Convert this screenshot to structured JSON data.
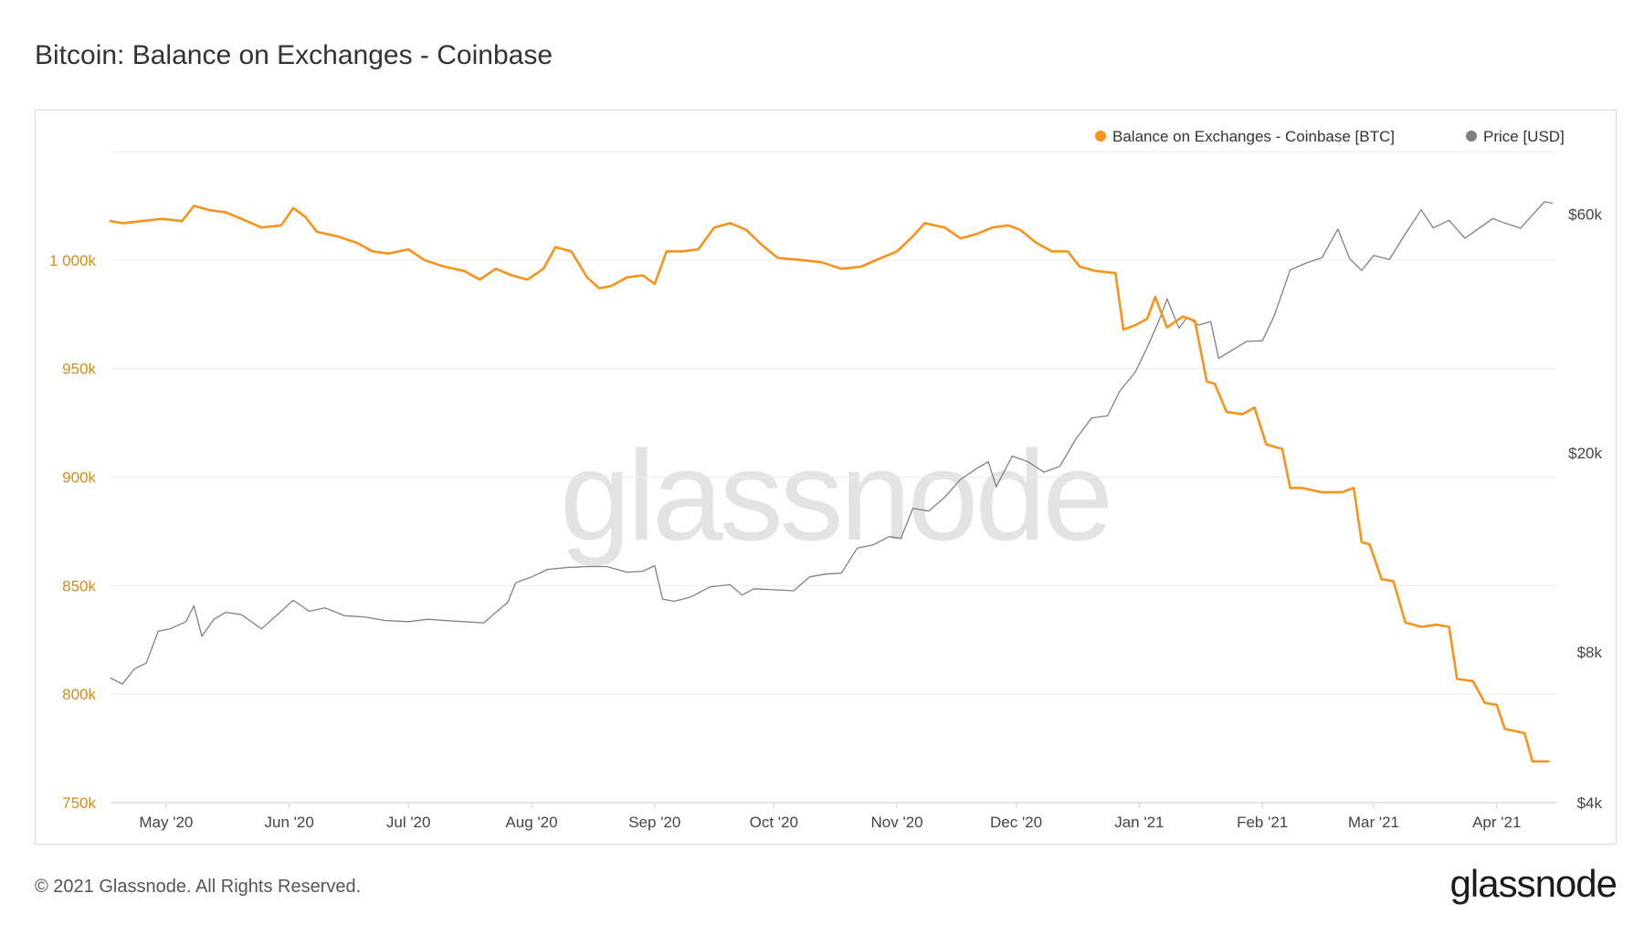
{
  "title": "Bitcoin: Balance on Exchanges - Coinbase",
  "footer": {
    "copyright": "© 2021 Glassnode. All Rights Reserved.",
    "logo": "glassnode"
  },
  "watermark": "glassnode",
  "colors": {
    "balance": "#f7931a",
    "price": "#808080",
    "grid": "#ececec",
    "left_axis_text": "#d98a1c",
    "right_axis_text": "#444444",
    "watermark": "#e3e3e3"
  },
  "chart_data": {
    "type": "line",
    "title": "Bitcoin: Balance on Exchanges - Coinbase",
    "x_range": [
      "2020-04-17",
      "2021-04-16"
    ],
    "x_ticks": [
      {
        "label": "May '20",
        "date": "2020-05-01"
      },
      {
        "label": "Jun '20",
        "date": "2020-06-01"
      },
      {
        "label": "Jul '20",
        "date": "2020-07-01"
      },
      {
        "label": "Aug '20",
        "date": "2020-08-01"
      },
      {
        "label": "Sep '20",
        "date": "2020-09-01"
      },
      {
        "label": "Oct '20",
        "date": "2020-10-01"
      },
      {
        "label": "Nov '20",
        "date": "2020-11-01"
      },
      {
        "label": "Dec '20",
        "date": "2020-12-01"
      },
      {
        "label": "Jan '21",
        "date": "2021-01-01"
      },
      {
        "label": "Feb '21",
        "date": "2021-02-01"
      },
      {
        "label": "Mar '21",
        "date": "2021-03-01"
      },
      {
        "label": "Apr '21",
        "date": "2021-04-01"
      }
    ],
    "y_left": {
      "range": [
        750000,
        1050000
      ],
      "ticks": [
        {
          "label": "750k",
          "value": 750000
        },
        {
          "label": "800k",
          "value": 800000
        },
        {
          "label": "850k",
          "value": 850000
        },
        {
          "label": "900k",
          "value": 900000
        },
        {
          "label": "950k",
          "value": 950000
        },
        {
          "label": "1 000k",
          "value": 1000000
        }
      ]
    },
    "y_right": {
      "scale": "log",
      "range": [
        4000,
        80000
      ],
      "ticks": [
        {
          "label": "$4k",
          "value": 4000
        },
        {
          "label": "$8k",
          "value": 8000
        },
        {
          "label": "$20k",
          "value": 20000
        },
        {
          "label": "$60k",
          "value": 60000
        }
      ]
    },
    "grid": true,
    "legend_position": "top-right",
    "series": [
      {
        "name": "Balance on Exchanges - Coinbase [BTC]",
        "axis": "left",
        "color": "#f7931a",
        "points": [
          [
            "2020-04-17",
            1018000
          ],
          [
            "2020-04-20",
            1017000
          ],
          [
            "2020-04-25",
            1018000
          ],
          [
            "2020-04-30",
            1019000
          ],
          [
            "2020-05-05",
            1018000
          ],
          [
            "2020-05-08",
            1025000
          ],
          [
            "2020-05-12",
            1023000
          ],
          [
            "2020-05-16",
            1022000
          ],
          [
            "2020-05-20",
            1019000
          ],
          [
            "2020-05-25",
            1015000
          ],
          [
            "2020-05-30",
            1016000
          ],
          [
            "2020-06-02",
            1024000
          ],
          [
            "2020-06-05",
            1020000
          ],
          [
            "2020-06-08",
            1013000
          ],
          [
            "2020-06-13",
            1011000
          ],
          [
            "2020-06-18",
            1008000
          ],
          [
            "2020-06-22",
            1004000
          ],
          [
            "2020-06-26",
            1003000
          ],
          [
            "2020-07-01",
            1005000
          ],
          [
            "2020-07-05",
            1000000
          ],
          [
            "2020-07-10",
            997000
          ],
          [
            "2020-07-15",
            995000
          ],
          [
            "2020-07-19",
            991000
          ],
          [
            "2020-07-23",
            996000
          ],
          [
            "2020-07-27",
            993000
          ],
          [
            "2020-07-31",
            991000
          ],
          [
            "2020-08-04",
            996000
          ],
          [
            "2020-08-07",
            1006000
          ],
          [
            "2020-08-11",
            1004000
          ],
          [
            "2020-08-15",
            992000
          ],
          [
            "2020-08-18",
            987000
          ],
          [
            "2020-08-21",
            988000
          ],
          [
            "2020-08-25",
            992000
          ],
          [
            "2020-08-29",
            993000
          ],
          [
            "2020-09-01",
            989000
          ],
          [
            "2020-09-04",
            1004000
          ],
          [
            "2020-09-08",
            1004000
          ],
          [
            "2020-09-12",
            1005000
          ],
          [
            "2020-09-16",
            1015000
          ],
          [
            "2020-09-20",
            1017000
          ],
          [
            "2020-09-24",
            1014000
          ],
          [
            "2020-09-28",
            1007000
          ],
          [
            "2020-10-02",
            1001000
          ],
          [
            "2020-10-08",
            1000000
          ],
          [
            "2020-10-13",
            999000
          ],
          [
            "2020-10-18",
            996000
          ],
          [
            "2020-10-23",
            997000
          ],
          [
            "2020-10-28",
            1001000
          ],
          [
            "2020-11-01",
            1004000
          ],
          [
            "2020-11-05",
            1011000
          ],
          [
            "2020-11-08",
            1017000
          ],
          [
            "2020-11-13",
            1015000
          ],
          [
            "2020-11-17",
            1010000
          ],
          [
            "2020-11-21",
            1012000
          ],
          [
            "2020-11-25",
            1015000
          ],
          [
            "2020-11-29",
            1016000
          ],
          [
            "2020-12-02",
            1014000
          ],
          [
            "2020-12-06",
            1008000
          ],
          [
            "2020-12-10",
            1004000
          ],
          [
            "2020-12-14",
            1004000
          ],
          [
            "2020-12-17",
            997000
          ],
          [
            "2020-12-21",
            995000
          ],
          [
            "2020-12-26",
            994000
          ],
          [
            "2020-12-28",
            968000
          ],
          [
            "2020-12-31",
            970000
          ],
          [
            "2021-01-03",
            973000
          ],
          [
            "2021-01-05",
            983000
          ],
          [
            "2021-01-08",
            969000
          ],
          [
            "2021-01-12",
            974000
          ],
          [
            "2021-01-15",
            972000
          ],
          [
            "2021-01-18",
            944000
          ],
          [
            "2021-01-20",
            943000
          ],
          [
            "2021-01-23",
            930000
          ],
          [
            "2021-01-27",
            929000
          ],
          [
            "2021-01-30",
            932000
          ],
          [
            "2021-02-02",
            915000
          ],
          [
            "2021-02-06",
            913000
          ],
          [
            "2021-02-08",
            895000
          ],
          [
            "2021-02-11",
            895000
          ],
          [
            "2021-02-16",
            893000
          ],
          [
            "2021-02-21",
            893000
          ],
          [
            "2021-02-24",
            895000
          ],
          [
            "2021-02-26",
            870000
          ],
          [
            "2021-02-28",
            869000
          ],
          [
            "2021-03-03",
            853000
          ],
          [
            "2021-03-06",
            852000
          ],
          [
            "2021-03-09",
            833000
          ],
          [
            "2021-03-13",
            831000
          ],
          [
            "2021-03-17",
            832000
          ],
          [
            "2021-03-20",
            831000
          ],
          [
            "2021-03-22",
            807000
          ],
          [
            "2021-03-26",
            806000
          ],
          [
            "2021-03-29",
            796000
          ],
          [
            "2021-04-01",
            795000
          ],
          [
            "2021-04-03",
            784000
          ],
          [
            "2021-04-08",
            782000
          ],
          [
            "2021-04-10",
            769000
          ],
          [
            "2021-04-14",
            769000
          ]
        ]
      },
      {
        "name": "Price [USD]",
        "axis": "right",
        "color": "#808080",
        "points": [
          [
            "2020-04-17",
            7100
          ],
          [
            "2020-04-20",
            6900
          ],
          [
            "2020-04-23",
            7400
          ],
          [
            "2020-04-26",
            7600
          ],
          [
            "2020-04-29",
            8800
          ],
          [
            "2020-05-02",
            8900
          ],
          [
            "2020-05-06",
            9200
          ],
          [
            "2020-05-08",
            9900
          ],
          [
            "2020-05-10",
            8600
          ],
          [
            "2020-05-13",
            9300
          ],
          [
            "2020-05-16",
            9600
          ],
          [
            "2020-05-20",
            9500
          ],
          [
            "2020-05-25",
            8900
          ],
          [
            "2020-05-29",
            9500
          ],
          [
            "2020-06-02",
            10150
          ],
          [
            "2020-06-06",
            9650
          ],
          [
            "2020-06-10",
            9800
          ],
          [
            "2020-06-15",
            9450
          ],
          [
            "2020-06-20",
            9400
          ],
          [
            "2020-06-25",
            9250
          ],
          [
            "2020-07-01",
            9200
          ],
          [
            "2020-07-06",
            9300
          ],
          [
            "2020-07-10",
            9250
          ],
          [
            "2020-07-15",
            9200
          ],
          [
            "2020-07-20",
            9150
          ],
          [
            "2020-07-23",
            9600
          ],
          [
            "2020-07-26",
            10050
          ],
          [
            "2020-07-28",
            11000
          ],
          [
            "2020-08-01",
            11300
          ],
          [
            "2020-08-05",
            11700
          ],
          [
            "2020-08-10",
            11800
          ],
          [
            "2020-08-15",
            11850
          ],
          [
            "2020-08-20",
            11850
          ],
          [
            "2020-08-25",
            11550
          ],
          [
            "2020-08-29",
            11600
          ],
          [
            "2020-09-01",
            11900
          ],
          [
            "2020-09-03",
            10200
          ],
          [
            "2020-09-06",
            10100
          ],
          [
            "2020-09-10",
            10300
          ],
          [
            "2020-09-15",
            10800
          ],
          [
            "2020-09-20",
            10900
          ],
          [
            "2020-09-23",
            10400
          ],
          [
            "2020-09-26",
            10700
          ],
          [
            "2020-10-01",
            10650
          ],
          [
            "2020-10-06",
            10600
          ],
          [
            "2020-10-10",
            11300
          ],
          [
            "2020-10-14",
            11450
          ],
          [
            "2020-10-18",
            11500
          ],
          [
            "2020-10-22",
            12900
          ],
          [
            "2020-10-26",
            13100
          ],
          [
            "2020-10-30",
            13600
          ],
          [
            "2020-11-02",
            13500
          ],
          [
            "2020-11-05",
            15500
          ],
          [
            "2020-11-09",
            15300
          ],
          [
            "2020-11-13",
            16300
          ],
          [
            "2020-11-17",
            17700
          ],
          [
            "2020-11-21",
            18600
          ],
          [
            "2020-11-24",
            19200
          ],
          [
            "2020-11-26",
            17100
          ],
          [
            "2020-11-30",
            19700
          ],
          [
            "2020-12-04",
            19200
          ],
          [
            "2020-12-08",
            18300
          ],
          [
            "2020-12-12",
            18800
          ],
          [
            "2020-12-16",
            21300
          ],
          [
            "2020-12-20",
            23500
          ],
          [
            "2020-12-24",
            23700
          ],
          [
            "2020-12-27",
            26500
          ],
          [
            "2020-12-31",
            29000
          ],
          [
            "2021-01-03",
            32500
          ],
          [
            "2021-01-06",
            36800
          ],
          [
            "2021-01-08",
            40600
          ],
          [
            "2021-01-11",
            35500
          ],
          [
            "2021-01-13",
            37300
          ],
          [
            "2021-01-16",
            36000
          ],
          [
            "2021-01-19",
            36600
          ],
          [
            "2021-01-21",
            30900
          ],
          [
            "2021-01-25",
            32300
          ],
          [
            "2021-01-28",
            33400
          ],
          [
            "2021-02-01",
            33500
          ],
          [
            "2021-02-04",
            37600
          ],
          [
            "2021-02-08",
            46400
          ],
          [
            "2021-02-12",
            47900
          ],
          [
            "2021-02-16",
            49100
          ],
          [
            "2021-02-20",
            56000
          ],
          [
            "2021-02-23",
            48800
          ],
          [
            "2021-02-26",
            46300
          ],
          [
            "2021-03-01",
            49600
          ],
          [
            "2021-03-05",
            48700
          ],
          [
            "2021-03-09",
            54800
          ],
          [
            "2021-03-13",
            61200
          ],
          [
            "2021-03-16",
            56300
          ],
          [
            "2021-03-20",
            58300
          ],
          [
            "2021-03-24",
            53700
          ],
          [
            "2021-03-27",
            55800
          ],
          [
            "2021-03-31",
            58800
          ],
          [
            "2021-04-03",
            57600
          ],
          [
            "2021-04-07",
            56200
          ],
          [
            "2021-04-10",
            59800
          ],
          [
            "2021-04-13",
            63500
          ],
          [
            "2021-04-15",
            63100
          ]
        ]
      }
    ]
  }
}
